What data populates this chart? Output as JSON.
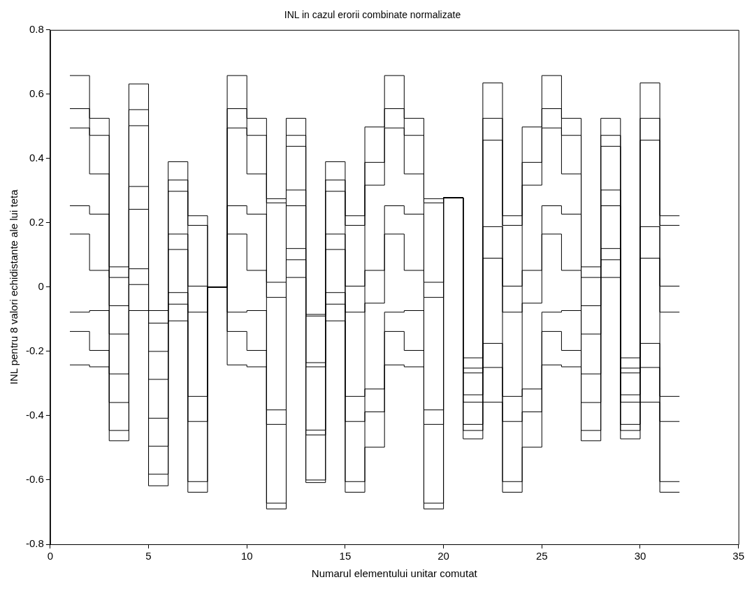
{
  "chart_data": {
    "type": "step",
    "title": "INL in cazul erorii combinate normalizate",
    "xlabel": "Numarul elementului unitar comutat",
    "ylabel": "INL pentru 8 valori echidistante ale lui teta",
    "x": [
      1,
      2,
      3,
      4,
      5,
      6,
      7,
      8,
      9,
      10,
      11,
      12,
      13,
      14,
      15,
      16,
      17,
      18,
      19,
      20,
      21,
      22,
      23,
      24,
      25,
      26,
      27,
      28,
      29,
      30,
      31,
      32
    ],
    "series": [
      {
        "color": "#000000",
        "values": [
          0.658,
          0.525,
          0.063,
          0.632,
          -0.073,
          0.39,
          0.222,
          0,
          0.658,
          0.525,
          0.275,
          0.525,
          -0.085,
          0.39,
          0.222,
          0.498,
          0.658,
          0.525,
          0.275,
          0.278,
          -0.22,
          0.635,
          0.222,
          0.498,
          0.658,
          0.525,
          0.063,
          0.525,
          -0.22,
          0.635,
          0.222,
          0.222
        ]
      },
      {
        "color": "#000000",
        "values": [
          0.555,
          0.472,
          0.03,
          0.552,
          -0.112,
          0.333,
          0.192,
          0,
          0.555,
          0.472,
          0.262,
          0.472,
          -0.09,
          0.333,
          0.192,
          0.388,
          0.555,
          0.472,
          0.262,
          0.278,
          -0.252,
          0.525,
          0.192,
          0.388,
          0.555,
          0.472,
          0.03,
          0.472,
          -0.252,
          0.525,
          0.192,
          0.192
        ]
      },
      {
        "color": "#000000",
        "values": [
          0.495,
          0.352,
          -0.058,
          0.502,
          -0.2,
          0.298,
          0.003,
          0,
          0.495,
          0.352,
          0.015,
          0.438,
          -0.235,
          0.298,
          0.003,
          0.317,
          0.495,
          0.352,
          0.015,
          0.278,
          -0.267,
          0.457,
          0.003,
          0.317,
          0.495,
          0.352,
          -0.058,
          0.438,
          -0.267,
          0.457,
          0.003,
          0.003
        ]
      },
      {
        "color": "#000000",
        "values": [
          0.253,
          0.227,
          -0.146,
          0.313,
          -0.287,
          0.165,
          -0.078,
          0,
          0.253,
          0.227,
          -0.032,
          0.302,
          -0.248,
          0.165,
          -0.078,
          0.052,
          0.253,
          0.227,
          -0.032,
          0.278,
          -0.335,
          0.188,
          -0.078,
          0.052,
          0.253,
          0.227,
          -0.146,
          0.302,
          -0.335,
          0.188,
          -0.078,
          -0.078
        ]
      },
      {
        "color": "#000000",
        "values": [
          0.165,
          0.052,
          -0.27,
          0.242,
          -0.408,
          0.117,
          -0.34,
          0,
          0.165,
          0.052,
          -0.382,
          0.253,
          -0.445,
          0.117,
          -0.34,
          -0.05,
          0.165,
          0.052,
          -0.382,
          0.278,
          -0.358,
          0.09,
          -0.34,
          -0.05,
          0.165,
          0.052,
          -0.27,
          0.253,
          -0.358,
          0.09,
          -0.34,
          -0.34
        ]
      },
      {
        "color": "#000000",
        "values": [
          -0.078,
          -0.073,
          -0.359,
          0.057,
          -0.495,
          -0.017,
          -0.418,
          0,
          -0.078,
          -0.073,
          -0.427,
          0.12,
          -0.46,
          -0.017,
          -0.418,
          -0.317,
          -0.078,
          -0.073,
          -0.427,
          0.278,
          -0.427,
          -0.175,
          -0.418,
          -0.317,
          -0.078,
          -0.073,
          -0.359,
          0.12,
          -0.427,
          -0.175,
          -0.418,
          -0.418
        ]
      },
      {
        "color": "#000000",
        "values": [
          -0.138,
          -0.197,
          -0.446,
          0.008,
          -0.582,
          -0.053,
          -0.605,
          0,
          -0.138,
          -0.197,
          -0.672,
          0.085,
          -0.6,
          -0.053,
          -0.605,
          -0.388,
          -0.138,
          -0.197,
          -0.672,
          0.278,
          -0.446,
          -0.25,
          -0.605,
          -0.388,
          -0.138,
          -0.197,
          -0.446,
          0.085,
          -0.446,
          -0.25,
          -0.605,
          -0.605
        ]
      },
      {
        "color": "#000000",
        "values": [
          -0.242,
          -0.248,
          -0.478,
          -0.073,
          -0.618,
          -0.105,
          -0.638,
          0,
          -0.242,
          -0.248,
          -0.69,
          0.03,
          -0.608,
          -0.105,
          -0.638,
          -0.498,
          -0.242,
          -0.248,
          -0.69,
          0.278,
          -0.472,
          -0.358,
          -0.638,
          -0.498,
          -0.242,
          -0.248,
          -0.478,
          0.03,
          -0.472,
          -0.358,
          -0.638,
          -0.638
        ]
      }
    ],
    "xlim": [
      0,
      35
    ],
    "xticks": [
      0,
      5,
      10,
      15,
      20,
      25,
      30,
      35
    ],
    "ylim": [
      -0.8,
      0.8
    ],
    "yticks": [
      -0.8,
      -0.6,
      -0.4,
      -0.2,
      0,
      0.2,
      0.4,
      0.6,
      0.8
    ],
    "grid": false,
    "legend": false
  }
}
